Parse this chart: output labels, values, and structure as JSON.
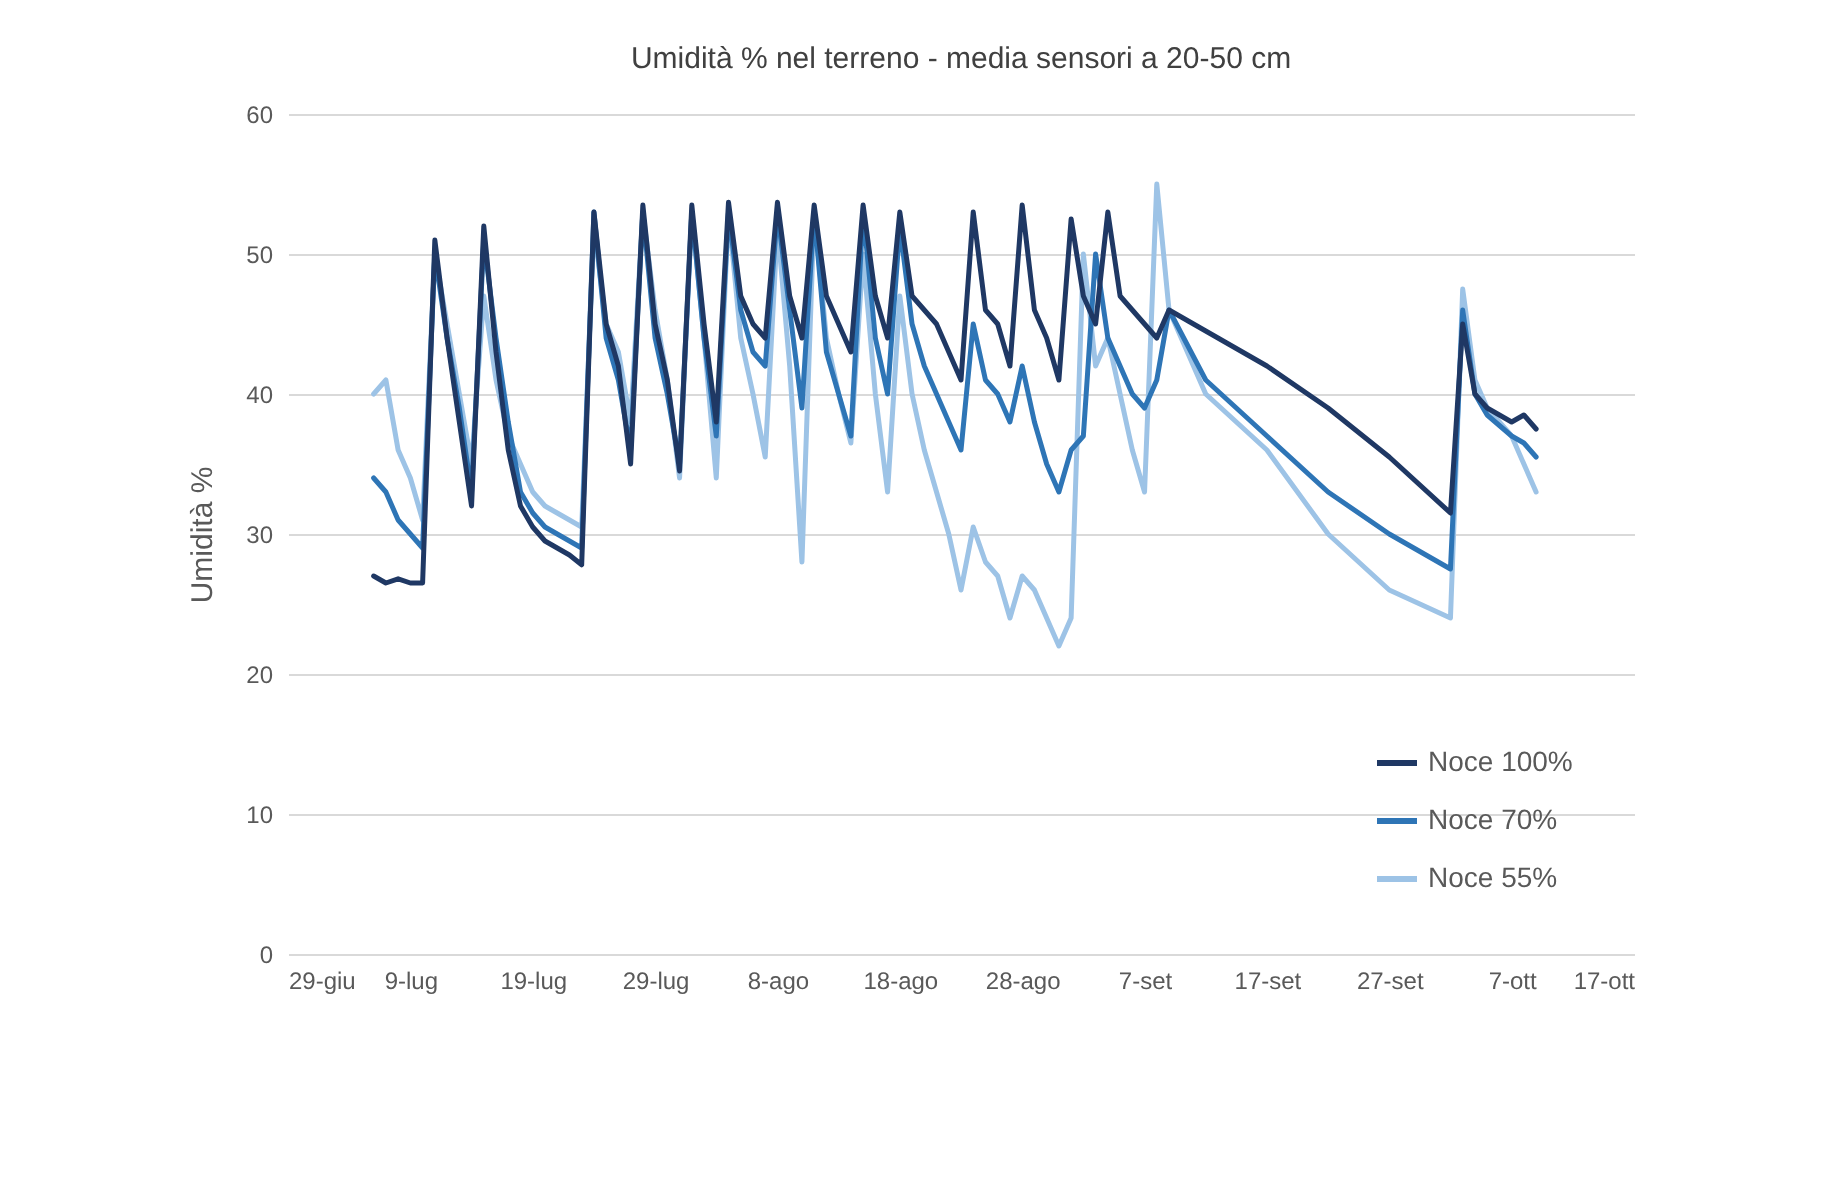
{
  "chart_data": {
    "type": "line",
    "title": "Umidità % nel terreno - media sensori a 20-50 cm",
    "ylabel": "Umidità %",
    "x": [
      "--07-06",
      "--07-07",
      "--07-08",
      "--07-09",
      "--07-10",
      "--07-11",
      "--07-12",
      "--07-13",
      "--07-14",
      "--07-15",
      "--07-16",
      "--07-17",
      "--07-18",
      "--07-19",
      "--07-20",
      "--07-21",
      "--07-22",
      "--07-23",
      "--07-24",
      "--07-25",
      "--07-26",
      "--07-27",
      "--07-28",
      "--07-29",
      "--07-30",
      "--07-31",
      "--08-01",
      "--08-02",
      "--08-03",
      "--08-04",
      "--08-05",
      "--08-06",
      "--08-07",
      "--08-08",
      "--08-09",
      "--08-10",
      "--08-11",
      "--08-12",
      "--08-13",
      "--08-14",
      "--08-15",
      "--08-16",
      "--08-17",
      "--08-18",
      "--08-19",
      "--08-20",
      "--08-21",
      "--08-22",
      "--08-23",
      "--08-24",
      "--08-25",
      "--08-26",
      "--08-27",
      "--08-28",
      "--08-29",
      "--08-30",
      "--08-31",
      "--09-01",
      "--09-02",
      "--09-03",
      "--09-04",
      "--09-05",
      "--09-06",
      "--09-07",
      "--09-08",
      "--09-09",
      "--09-12",
      "--09-17",
      "--09-22",
      "--09-27",
      "--10-02",
      "--10-03",
      "--10-04",
      "--10-05",
      "--10-07",
      "--10-08",
      "--10-09"
    ],
    "series": [
      {
        "name": "Noce 100%",
        "color": "#1f3864",
        "values": [
          27,
          26.5,
          26.8,
          26.5,
          26.5,
          51,
          44,
          38,
          32,
          52,
          43,
          36,
          32,
          30.5,
          29.5,
          29,
          28.5,
          27.8,
          53,
          45,
          42,
          35,
          53.5,
          45,
          41,
          34.5,
          53.5,
          45,
          38,
          53.7,
          47,
          45,
          44,
          53.7,
          47,
          44,
          53.5,
          47,
          45,
          43,
          53.5,
          47,
          44,
          53,
          47,
          46,
          45,
          43,
          41,
          53,
          46,
          45,
          42,
          53.5,
          46,
          44,
          41,
          52.5,
          47,
          45,
          53,
          47,
          46,
          45,
          44,
          46,
          44.5,
          42,
          39,
          35.5,
          31.5,
          45,
          40,
          39,
          38,
          38.5,
          37.5
        ]
      },
      {
        "name": "Noce 70%",
        "color": "#2e75b6",
        "values": [
          34,
          33,
          31,
          30,
          29,
          50,
          44,
          39,
          33,
          51,
          44,
          38,
          33,
          31.5,
          30.5,
          30,
          29.5,
          29,
          53,
          44,
          41,
          36,
          53,
          44,
          40,
          35,
          53,
          44,
          37,
          53,
          46,
          43,
          42,
          53,
          46,
          39,
          53,
          43,
          40,
          37,
          53,
          44,
          40,
          52,
          45,
          42,
          40,
          38,
          36,
          45,
          41,
          40,
          38,
          42,
          38,
          35,
          33,
          36,
          37,
          50,
          44,
          42,
          40,
          39,
          41,
          46,
          41,
          37,
          33,
          30,
          27.5,
          46,
          40,
          38.5,
          37,
          36.5,
          35.5
        ]
      },
      {
        "name": "Noce 55%",
        "color": "#9dc3e6",
        "values": [
          40,
          41,
          36,
          34,
          31,
          50,
          45,
          40,
          35,
          47,
          41,
          37,
          35,
          33,
          32,
          31.5,
          31,
          30.5,
          52,
          45,
          43,
          38,
          53,
          46,
          41,
          34,
          53,
          44,
          34,
          53,
          44,
          40,
          35.5,
          52,
          42,
          28,
          53,
          44,
          40,
          36.5,
          50,
          40,
          33,
          47,
          40,
          36,
          33,
          30,
          26,
          30.5,
          28,
          27,
          24,
          27,
          26,
          24,
          22,
          24,
          50,
          42,
          44,
          40,
          36,
          33,
          55,
          46,
          40,
          36,
          30,
          26,
          24,
          47.5,
          41,
          39,
          37,
          35,
          33
        ]
      }
    ],
    "xlim": [
      "--06-29",
      "--10-17"
    ],
    "xticks": [
      {
        "value": "--06-29",
        "label": "29-giu"
      },
      {
        "value": "--07-09",
        "label": "9-lug"
      },
      {
        "value": "--07-19",
        "label": "19-lug"
      },
      {
        "value": "--07-29",
        "label": "29-lug"
      },
      {
        "value": "--08-08",
        "label": "8-ago"
      },
      {
        "value": "--08-18",
        "label": "18-ago"
      },
      {
        "value": "--08-28",
        "label": "28-ago"
      },
      {
        "value": "--09-07",
        "label": "7-set"
      },
      {
        "value": "--09-17",
        "label": "17-set"
      },
      {
        "value": "--09-27",
        "label": "27-set"
      },
      {
        "value": "--10-07",
        "label": "7-ott"
      },
      {
        "value": "--10-17",
        "label": "17-ott"
      }
    ],
    "ylim": [
      0,
      60
    ],
    "yticks": [
      0,
      10,
      20,
      30,
      40,
      50,
      60
    ],
    "grid": "y",
    "legend": "bottom right",
    "marker": "none",
    "line_style": "solid"
  }
}
